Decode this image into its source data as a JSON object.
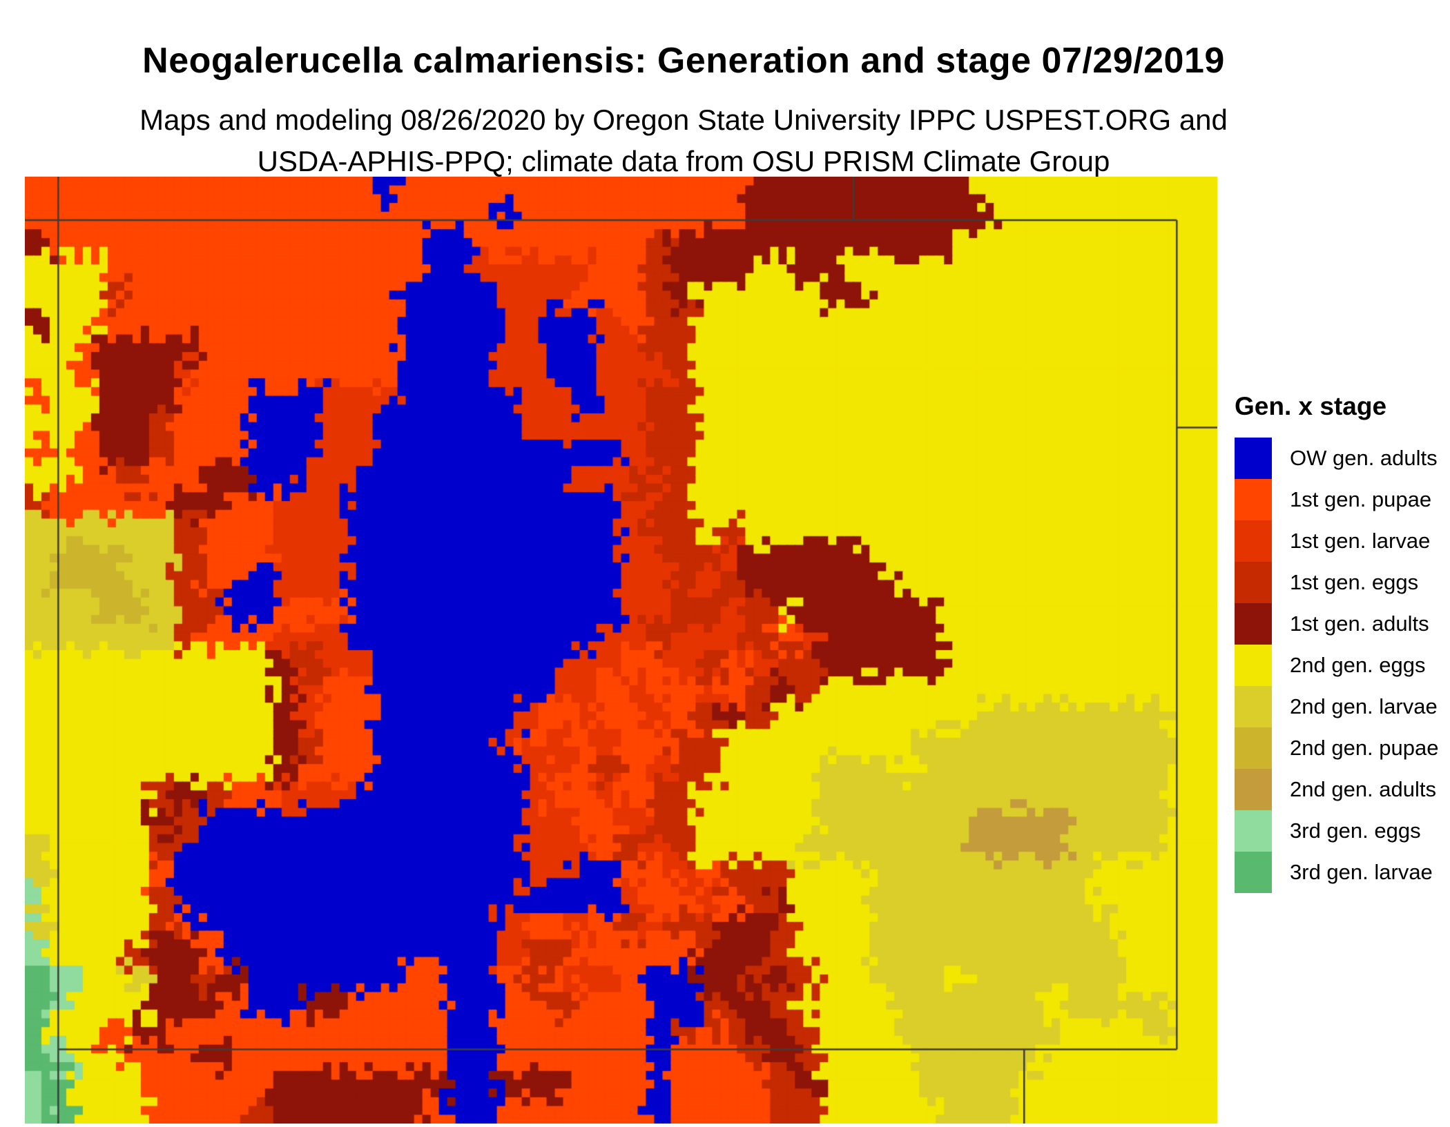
{
  "header": {
    "title": "Neogalerucella calmariensis: Generation and stage 07/29/2019",
    "subtitle_line1": "Maps and modeling 08/26/2020 by Oregon State University IPPC USPEST.ORG and",
    "subtitle_line2": "USDA-APHIS-PPQ; climate data from OSU PRISM Climate Group"
  },
  "legend": {
    "title": "Gen. x stage",
    "items": [
      {
        "key": "B",
        "label": "OW gen. adults",
        "color": "#0000CC"
      },
      {
        "key": "P",
        "label": "1st gen. pupae",
        "color": "#FF4500"
      },
      {
        "key": "L",
        "label": "1st gen. larvae",
        "color": "#E63400"
      },
      {
        "key": "E",
        "label": "1st gen. eggs",
        "color": "#C52A00"
      },
      {
        "key": "A",
        "label": "1st gen. adults",
        "color": "#8E1409"
      },
      {
        "key": "Y",
        "label": "2nd gen. eggs",
        "color": "#F2E700"
      },
      {
        "key": "l",
        "label": "2nd gen. larvae",
        "color": "#DBCE2A"
      },
      {
        "key": "p",
        "label": "2nd gen. pupae",
        "color": "#CCB52C"
      },
      {
        "key": "a",
        "label": "2nd gen. adults",
        "color": "#C49C3C"
      },
      {
        "key": "g",
        "label": "3rd gen. eggs",
        "color": "#90DB9E"
      },
      {
        "key": "G",
        "label": "3rd gen. larvae",
        "color": "#59B96E"
      }
    ]
  },
  "map": {
    "boundary_color": "#3C3C3C",
    "boundary_segments": [
      [
        0.0,
        0.046,
        0.966,
        0.046
      ],
      [
        0.028,
        0.0,
        0.028,
        1.0
      ],
      [
        0.966,
        0.046,
        0.966,
        0.9216
      ],
      [
        0.028,
        0.9216,
        0.966,
        0.9216
      ],
      [
        0.695,
        0.0,
        0.695,
        0.046
      ],
      [
        0.966,
        0.265,
        1.0,
        0.265
      ],
      [
        0.838,
        0.9216,
        0.838,
        1.0
      ]
    ],
    "grid_rows": [
      "PPPPPPPPPPPPPPBPPPPPPPPPPPPPPAAAAAAAAAYYYYYYYYYY",
      "PPPPPPPPPPPPPPPPPPPBPPPPPPPPPAAAAAAAAAAYYYYYYYYY",
      "APPPPPPPPPPPPPPPBBPPPPPPPEAAAAAAAAAAAYYYYYYYYYYY",
      "YYYPPPPPPPPPPPPPBBLLLLLPPEAAAYYAAYYYYYYYYYYYYYYY",
      "YYYEPPPPPPPPPPPBBBBLLLPPPEAYYYYYAAYYYYYYYYYYYYYY",
      "AYYPPPPPPPPPPPPBBBBLLBBLPEEYYYYYYYYYYYYYYYYYYYYY",
      "YYPAAAAPPPPPPPPBBBBLLBBLLEEYYYYYYYYYYYYYYYYYYYYY",
      "YYPAAALPPPPPPPPBBBBLLBBLLLEYYYYYYYYYYYYYYYYYYYYY",
      "PYYAAAPPPBBBLLLBBBBBLLBLLEEYYYYYYYYYYYYYYYYYYYYY",
      "YYPAAEPPPBBBLLBBBBBBLLLLLEEYYYYYYYYYYYYYYYYYYYYY",
      "PYPAAEPPPBBBLLBBBBBBBBBBLEEYYYYYYYYYYYYYYYYYYYYY",
      "YYPPEPPAABBLLBBBBBBBBBLLELEYYYYYYYYYYYYYYYYYYYYY",
      "EPPPPPAAPPLLLBBBBBBBBBBBLEEYYYYYYYYYYYYYYYYYYYYY",
      "llllllEPPPLLLBBBBBBBBBBBLEEYEYYYYYYYYYYYYYYYYYYY",
      "lpppllEPPPLLLBBBBBBBBBBBLLEELAAAAAYYYYYYYYYYYYYY",
      "lpppllEPBBLLLBBBBBBBBBBBLLELEAAAAAAYYYYYYYYYYYYY",
      "lllpplEEBBPPPBBBBBBBBBBBLLEELEYAAAAAAYYYYYYYYYYY",
      "llllllEPPPLLLBBBBBBBBBBLLELLLEPLAAAAAYYYYYYYYYYY",
      "YYYYYYYYYYAELLBBBBBBBBLLPPLEPLEEAAAAAYYYYYYYYYYY",
      "YYYYYYYYYYALPPBBBBBBBLLPLPPLPEAEYYYYYYYYYYYYYYYY",
      "YYYYYYYYYYALPPBBBBBBLPLPPLPEAEYYYYYYYYllllllllYY",
      "YYYYYYYYYYAEPPBBBBBLPLPLPPEEYYYYYYYYllllllllllYY",
      "YYYYYYYYYYAPPPBBBBBBLLPEPLEEYYYYlllYllllllllllYY",
      "YYYYYEAEPPLLLBBBBBBBLPPLPEEYYYYYllllllllllllllYY",
      "YYYYYAEBBBBBBBBBBBBBLLPPLEEYYYYYllllllaaaallllYY",
      "lYYYYEBBBBBBBBBBBBBBLLLPELEYYYYlllllllaaaallllYY",
      "lYYYYPBBBBBBBBBBBBBBLLBBPPLPEEEYYYlllllllllYYYYY",
      "gYYYYEBBBBBBBBBBBBBBBBBBLPPLPEAYYYlllllllllYYYYY",
      "lYYYYEPBBBBBBBBBBBBLPPLPELEEAAEYYYllllllllllYYYY",
      "gYYYEAAPBBBBBBBBBBBLEEPPPPPAAAEYYYllllllllllYYYY",
      "GgYYlAAEABBBBBBPPBBPEPLLPBBAAEAEYYlllYllllllYYYY",
      "GgYYYAAAPBBAAPPPPBBPPEPPPBBEAAEYYYYllllllYllllYY",
      "GYYPAAPPPPPPPPPPPBBPPPPPPBEPEAAEYYYlllllllYYYlYY",
      "GgYYPPPAPPPPPPPPPBBPPPPPPBPPPEAEYYYYlllllYYYYYYY",
      "gGYYYPPPPPAAAAAAABBAAAPPPBPPPPEAYYYYllllYYYYYYYY",
      "gGYYYPPPPEAAAAAAPBBPPPPPPBPPPPEEYYYYYlllYYYYYYYY"
    ]
  }
}
